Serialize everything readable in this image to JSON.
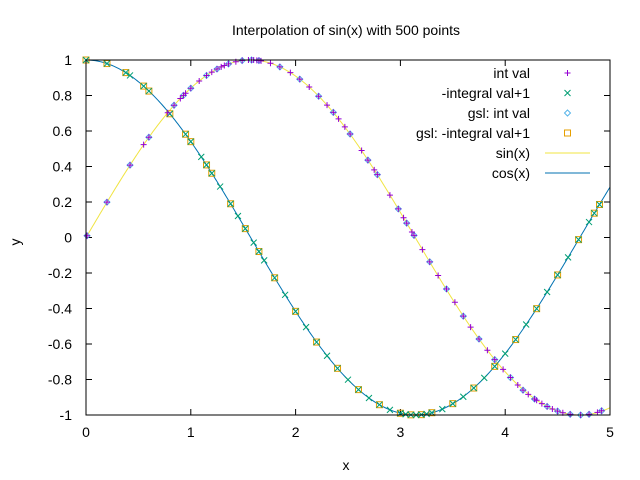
{
  "chart_data": {
    "type": "line",
    "title": "Interpolation of sin(x) with 500 points",
    "xlabel": "x",
    "ylabel": "y",
    "xlim": [
      0,
      5
    ],
    "ylim": [
      -1,
      1
    ],
    "xticks": [
      0,
      1,
      2,
      3,
      4,
      5
    ],
    "yticks": [
      -1,
      -0.8,
      -0.6,
      -0.4,
      -0.2,
      0,
      0.2,
      0.4,
      0.6,
      0.8,
      1
    ],
    "grid": false,
    "legend_position": "top-right",
    "series": [
      {
        "name": "int val",
        "kind": "points",
        "marker": "plus",
        "color": "#9400d3",
        "x": [
          0.01,
          0.2,
          0.42,
          0.55,
          0.6,
          0.78,
          0.84,
          0.9,
          0.93,
          0.95,
          1.0,
          1.08,
          1.15,
          1.2,
          1.25,
          1.29,
          1.32,
          1.36,
          1.43,
          1.49,
          1.55,
          1.58,
          1.6,
          1.63,
          1.65,
          1.67,
          1.76,
          1.85,
          1.95,
          2.04,
          2.13,
          2.22,
          2.3,
          2.36,
          2.41,
          2.47,
          2.52,
          2.63,
          2.69,
          2.75,
          2.78,
          2.9,
          2.98,
          3.03,
          3.06,
          3.11,
          3.13,
          3.21,
          3.28,
          3.36,
          3.44,
          3.52,
          3.6,
          3.67,
          3.75,
          3.83,
          3.9,
          3.98,
          4.05,
          4.12,
          4.17,
          4.22,
          4.28,
          4.3,
          4.35,
          4.4,
          4.45,
          4.5,
          4.55,
          4.62,
          4.72,
          4.8,
          4.88,
          4.92
        ],
        "y": [
          0.01,
          0.199,
          0.408,
          0.523,
          0.565,
          0.703,
          0.745,
          0.783,
          0.801,
          0.813,
          0.841,
          0.882,
          0.913,
          0.932,
          0.949,
          0.961,
          0.969,
          0.978,
          0.99,
          0.997,
          1.0,
          1.0,
          1.0,
          0.998,
          0.997,
          0.995,
          0.982,
          0.961,
          0.929,
          0.892,
          0.848,
          0.796,
          0.746,
          0.705,
          0.668,
          0.623,
          0.583,
          0.49,
          0.436,
          0.381,
          0.354,
          0.239,
          0.161,
          0.111,
          0.081,
          0.031,
          0.012,
          -0.068,
          -0.137,
          -0.214,
          -0.29,
          -0.365,
          -0.443,
          -0.505,
          -0.572,
          -0.635,
          -0.688,
          -0.743,
          -0.789,
          -0.831,
          -0.86,
          -0.884,
          -0.91,
          -0.917,
          -0.936,
          -0.952,
          -0.966,
          -0.978,
          -0.987,
          -0.996,
          -1.0,
          -0.996,
          -0.985,
          -0.976
        ]
      },
      {
        "name": "-integral val+1",
        "kind": "points",
        "marker": "cross",
        "color": "#009e73",
        "x": [
          0.0,
          0.2,
          0.38,
          0.42,
          0.55,
          0.6,
          0.8,
          0.95,
          1.0,
          1.1,
          1.15,
          1.2,
          1.28,
          1.38,
          1.45,
          1.52,
          1.6,
          1.65,
          1.7,
          1.8,
          1.9,
          2.0,
          2.1,
          2.2,
          2.3,
          2.4,
          2.5,
          2.6,
          2.7,
          2.8,
          2.9,
          3.0,
          3.05,
          3.1,
          3.15,
          3.2,
          3.25,
          3.3,
          3.4,
          3.5,
          3.6,
          3.7,
          3.8,
          3.9,
          4.0,
          4.1,
          4.2,
          4.3,
          4.4,
          4.5,
          4.6,
          4.7,
          4.8,
          4.85,
          4.9
        ],
        "y": [
          1.0,
          0.98,
          0.929,
          0.913,
          0.853,
          0.825,
          0.697,
          0.582,
          0.54,
          0.454,
          0.409,
          0.362,
          0.287,
          0.19,
          0.121,
          0.05,
          -0.029,
          -0.079,
          -0.129,
          -0.227,
          -0.323,
          -0.416,
          -0.505,
          -0.589,
          -0.666,
          -0.737,
          -0.801,
          -0.857,
          -0.904,
          -0.942,
          -0.971,
          -0.99,
          -0.996,
          -0.999,
          -1.0,
          -0.998,
          -0.994,
          -0.987,
          -0.967,
          -0.936,
          -0.897,
          -0.848,
          -0.791,
          -0.726,
          -0.654,
          -0.575,
          -0.49,
          -0.401,
          -0.307,
          -0.211,
          -0.112,
          -0.012,
          0.087,
          0.137,
          0.186
        ]
      },
      {
        "name": "gsl: int val",
        "kind": "points",
        "marker": "diamond",
        "color": "#56b4e9",
        "x": [
          0.01,
          0.2,
          0.42,
          0.6,
          0.84,
          0.93,
          1.0,
          1.15,
          1.25,
          1.36,
          1.49,
          1.58,
          1.65,
          1.85,
          2.04,
          2.22,
          2.36,
          2.52,
          2.69,
          2.78,
          2.98,
          3.06,
          3.13,
          3.28,
          3.44,
          3.6,
          3.75,
          3.9,
          4.05,
          4.17,
          4.28,
          4.4,
          4.5,
          4.62,
          4.72,
          4.8,
          4.92
        ],
        "y": [
          0.01,
          0.199,
          0.408,
          0.565,
          0.745,
          0.801,
          0.841,
          0.913,
          0.949,
          0.978,
          0.997,
          1.0,
          0.997,
          0.961,
          0.892,
          0.796,
          0.705,
          0.583,
          0.436,
          0.354,
          0.161,
          0.081,
          0.012,
          -0.137,
          -0.29,
          -0.443,
          -0.572,
          -0.688,
          -0.789,
          -0.86,
          -0.91,
          -0.952,
          -0.978,
          -0.996,
          -1.0,
          -0.996,
          -0.976
        ]
      },
      {
        "name": "gsl: -integral val+1",
        "kind": "points",
        "marker": "square",
        "color": "#e69f00",
        "x": [
          0.0,
          0.2,
          0.38,
          0.55,
          0.6,
          0.8,
          0.95,
          1.0,
          1.15,
          1.2,
          1.38,
          1.52,
          1.65,
          1.8,
          2.0,
          2.2,
          2.4,
          2.6,
          2.8,
          3.0,
          3.1,
          3.2,
          3.3,
          3.5,
          3.7,
          3.9,
          4.1,
          4.3,
          4.5,
          4.7,
          4.85,
          4.9
        ],
        "y": [
          1.0,
          0.98,
          0.929,
          0.853,
          0.825,
          0.697,
          0.582,
          0.54,
          0.409,
          0.362,
          0.19,
          0.05,
          -0.079,
          -0.227,
          -0.416,
          -0.589,
          -0.737,
          -0.857,
          -0.942,
          -0.99,
          -0.999,
          -0.998,
          -0.987,
          -0.936,
          -0.848,
          -0.726,
          -0.575,
          -0.401,
          -0.211,
          -0.012,
          0.137,
          0.186
        ]
      },
      {
        "name": "sin(x)",
        "kind": "function",
        "function": "sin",
        "color": "#f0e442"
      },
      {
        "name": "cos(x)",
        "kind": "function",
        "function": "cos",
        "color": "#0072b2"
      }
    ]
  }
}
